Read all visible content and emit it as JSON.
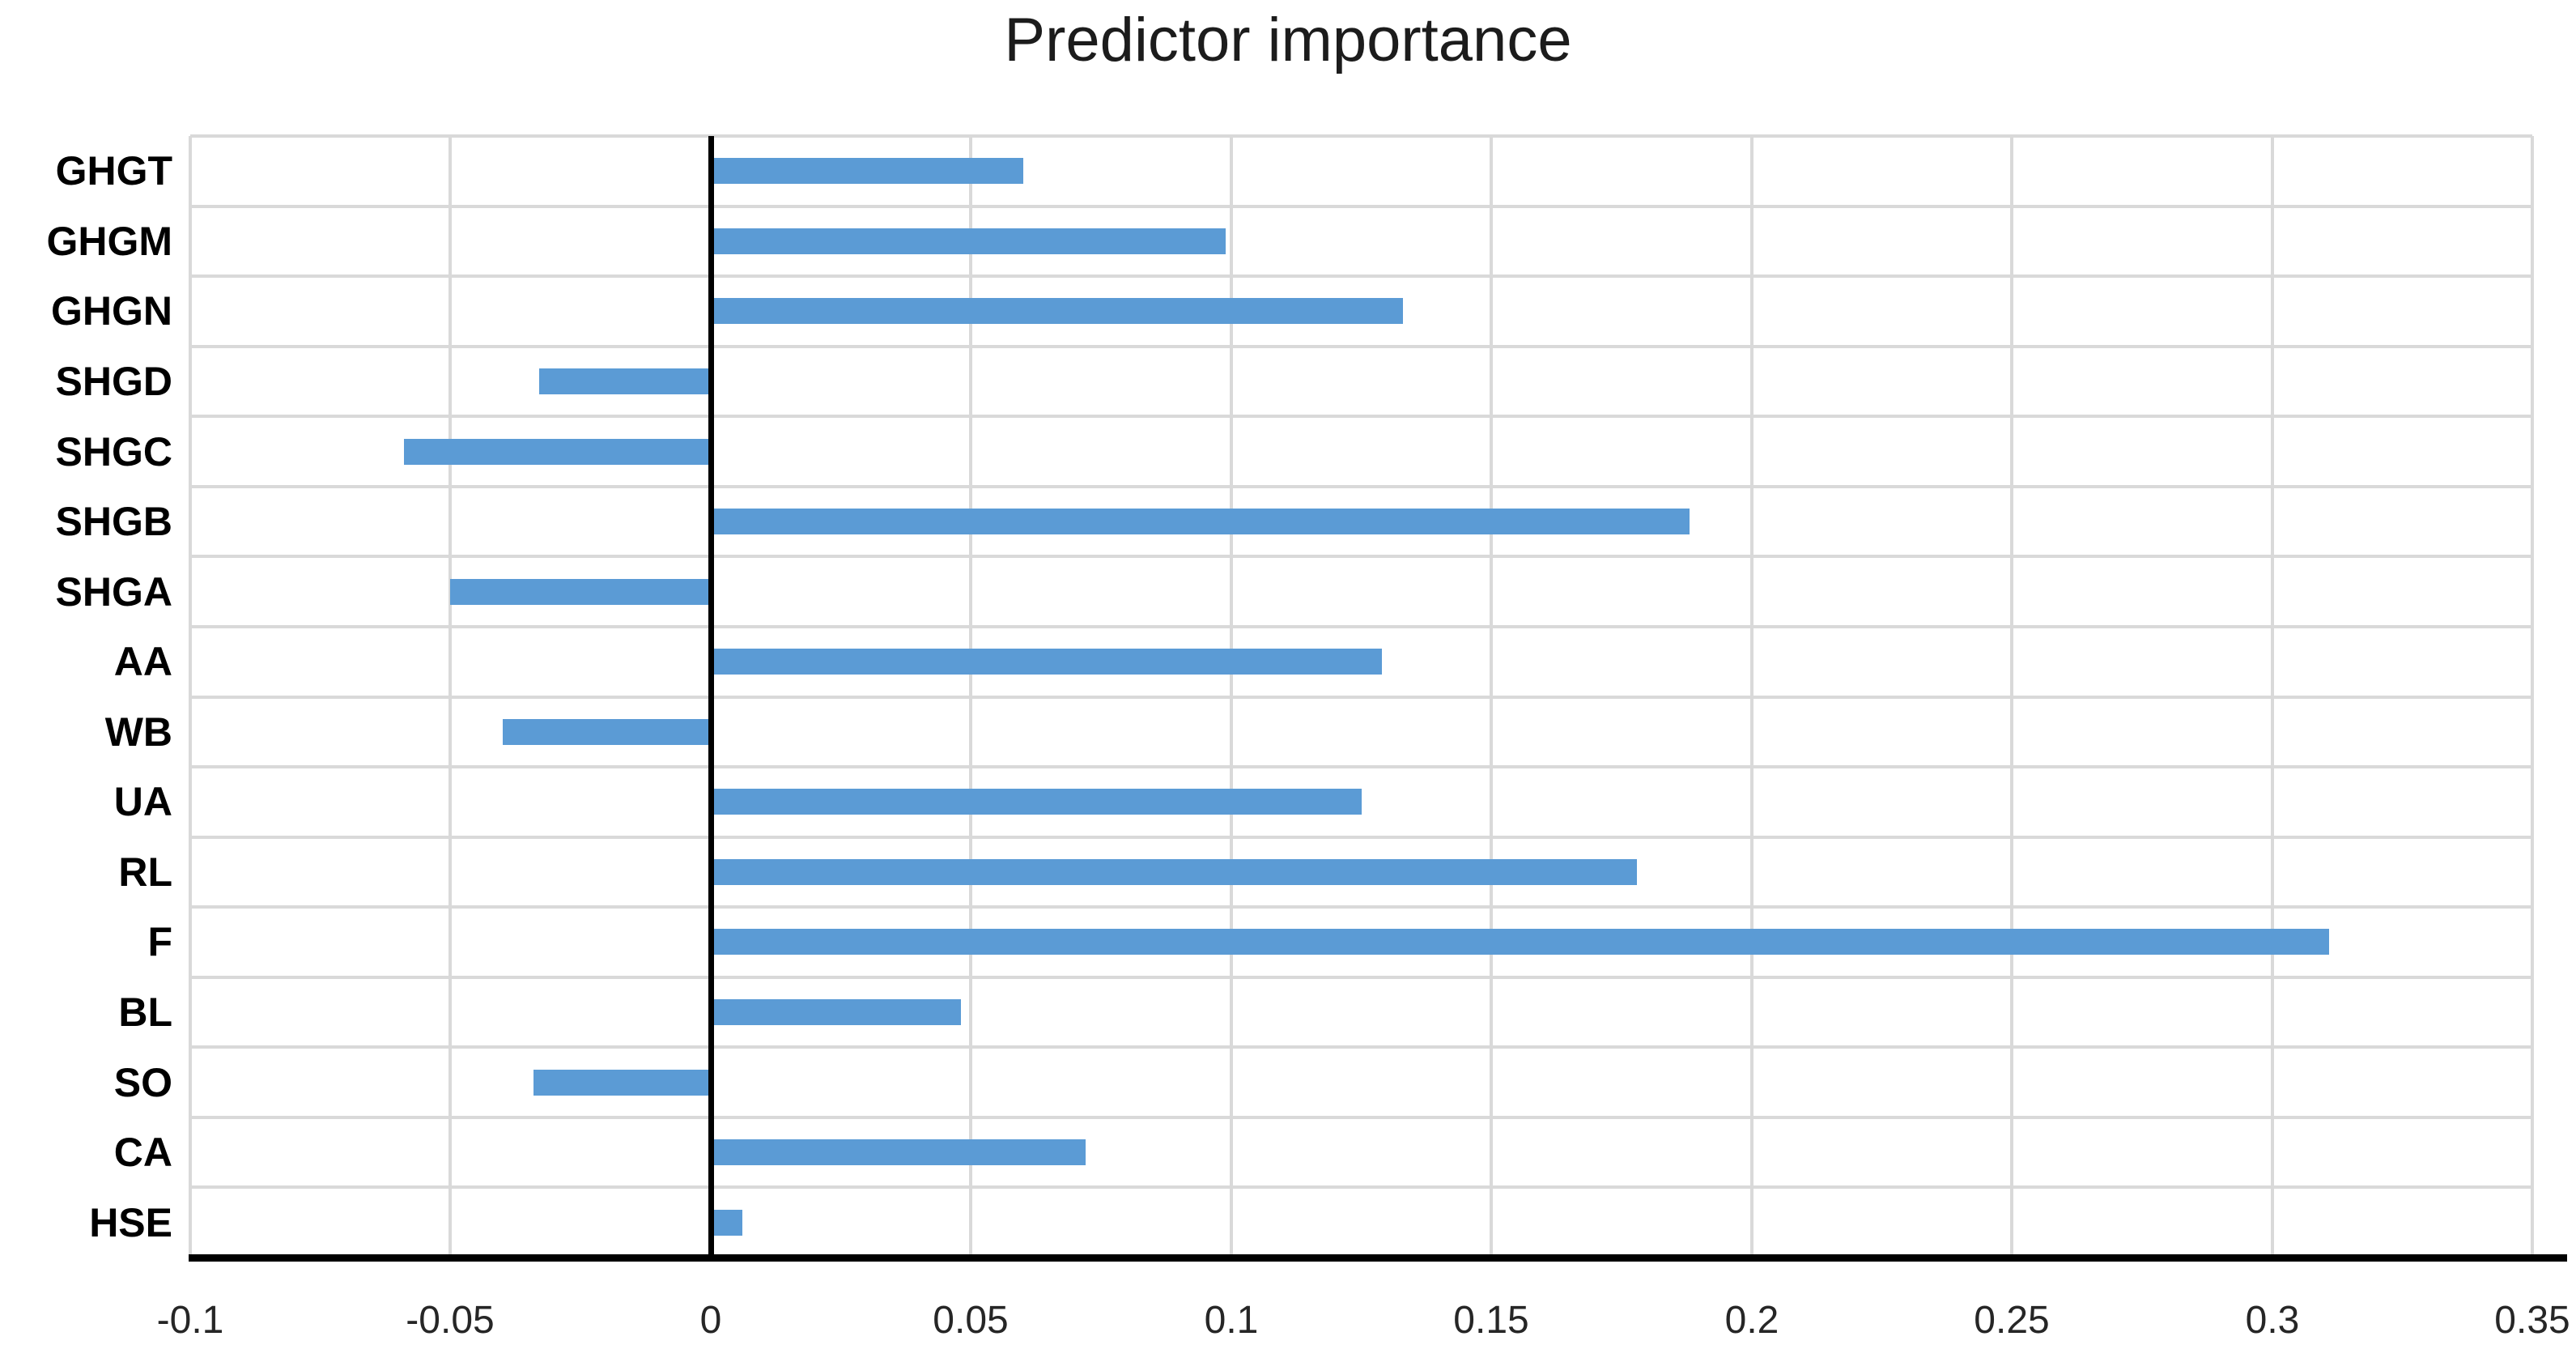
{
  "title": "Predictor importance",
  "colors": {
    "bar": "#5b9bd5",
    "gridline": "#d9d9d9",
    "axis_line": "#000000",
    "title_text": "#1c1c1c",
    "tick_text": "#262626",
    "category_text": "#000000",
    "background": "#ffffff"
  },
  "chart_data": {
    "type": "bar",
    "orientation": "horizontal",
    "title": "Predictor importance",
    "categories": [
      "GHGT",
      "GHGM",
      "GHGN",
      "SHGD",
      "SHGC",
      "SHGB",
      "SHGA",
      "AA",
      "WB",
      "UA",
      "RL",
      "F",
      "BL",
      "SO",
      "CA",
      "HSE"
    ],
    "values": [
      0.06,
      0.099,
      0.133,
      -0.033,
      -0.059,
      0.188,
      -0.05,
      0.129,
      -0.04,
      0.125,
      0.178,
      0.311,
      0.048,
      -0.034,
      0.072,
      0.006
    ],
    "xlabel": "",
    "ylabel": "",
    "xlim": [
      -0.1,
      0.35
    ],
    "xticks": [
      -0.1,
      -0.05,
      0,
      0.05,
      0.1,
      0.15,
      0.2,
      0.25,
      0.3,
      0.35
    ],
    "xtick_labels": [
      "-0.1",
      "-0.05",
      "0",
      "0.05",
      "0.1",
      "0.15",
      "0.2",
      "0.25",
      "0.3",
      "0.35"
    ],
    "grid": true,
    "legend": false,
    "zero_axis_line": true
  }
}
